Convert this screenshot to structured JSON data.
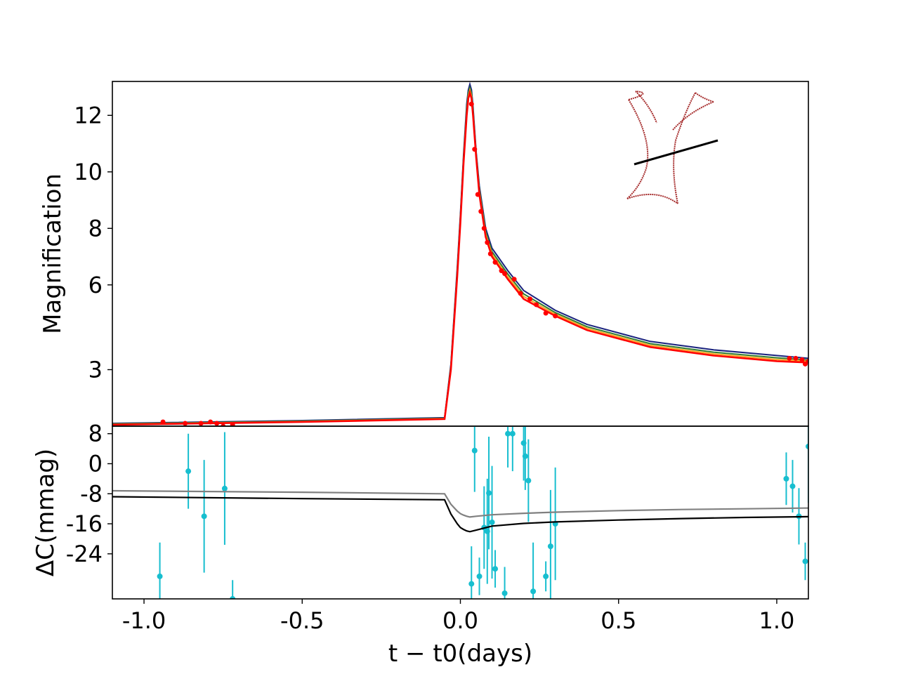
{
  "chart_data": [
    {
      "panel": "top",
      "type": "line",
      "ylabel": "Magnification",
      "xlim": [
        -1.1,
        1.1
      ],
      "ylim": [
        1.0,
        13.2
      ],
      "yticks": [
        3,
        6,
        8,
        10,
        12
      ],
      "ytick_labels": [
        "3",
        "6",
        "8",
        "10",
        "12"
      ],
      "grid": false,
      "colors": {
        "model_top": "#1a237e",
        "model_mid1": "#2e7d32",
        "model_mid2": "#f9a825",
        "model_best": "#ff0000",
        "data": "#ff0000",
        "caustic": "#a52a2a",
        "trajectory": "#000000"
      },
      "series": [
        {
          "color": "#1a237e",
          "x": [
            -1.1,
            -0.5,
            -0.05,
            -0.03,
            -0.01,
            0.0,
            0.01,
            0.02,
            0.025,
            0.03,
            0.035,
            0.04,
            0.05,
            0.06,
            0.08,
            0.1,
            0.15,
            0.2,
            0.3,
            0.4,
            0.6,
            0.8,
            1.0,
            1.1
          ],
          "y": [
            1.1,
            1.2,
            1.3,
            3.2,
            6.6,
            8.5,
            10.6,
            12.4,
            12.9,
            13.1,
            12.9,
            12.3,
            10.7,
            9.5,
            8.0,
            7.3,
            6.5,
            5.8,
            5.1,
            4.6,
            4.0,
            3.7,
            3.5,
            3.4
          ]
        },
        {
          "color": "#ff0000",
          "x": [
            -1.1,
            -0.5,
            -0.05,
            -0.03,
            -0.01,
            0.0,
            0.01,
            0.02,
            0.025,
            0.03,
            0.035,
            0.04,
            0.05,
            0.06,
            0.08,
            0.1,
            0.15,
            0.2,
            0.3,
            0.4,
            0.6,
            0.8,
            1.0,
            1.1
          ],
          "y": [
            1.05,
            1.15,
            1.25,
            3.0,
            6.3,
            8.2,
            10.3,
            12.0,
            12.6,
            12.8,
            12.6,
            12.0,
            10.5,
            9.2,
            7.7,
            7.0,
            6.2,
            5.5,
            4.9,
            4.4,
            3.8,
            3.5,
            3.3,
            3.25
          ]
        }
      ],
      "data_points": {
        "color": "#ff0000",
        "x": [
          -0.94,
          -0.87,
          -0.82,
          -0.79,
          -0.77,
          -0.75,
          -0.72,
          0.035,
          0.045,
          0.055,
          0.065,
          0.075,
          0.085,
          0.095,
          0.11,
          0.13,
          0.14,
          0.17,
          0.19,
          0.22,
          0.24,
          0.27,
          0.3,
          1.04,
          1.06,
          1.08,
          1.09,
          1.1
        ],
        "y": [
          1.15,
          1.1,
          1.1,
          1.15,
          1.1,
          1.0,
          1.05,
          12.4,
          10.8,
          9.2,
          8.6,
          8.0,
          7.5,
          7.1,
          6.8,
          6.5,
          6.4,
          6.2,
          5.7,
          5.5,
          5.3,
          5.0,
          4.9,
          3.4,
          3.4,
          3.35,
          3.2,
          3.3
        ]
      }
    },
    {
      "panel": "bottom",
      "type": "line",
      "xlabel": "t − t0(days)",
      "ylabel": "ΔC(mmag)",
      "xlim": [
        -1.1,
        1.1
      ],
      "ylim": [
        -36,
        10
      ],
      "xticks": [
        -1.0,
        -0.5,
        0.0,
        0.5,
        1.0
      ],
      "xtick_labels": [
        "-1.0",
        "-0.5",
        "0.0",
        "0.5",
        "1.0"
      ],
      "yticks": [
        8,
        0,
        -8,
        -16,
        -24
      ],
      "ytick_labels": [
        "8",
        "0",
        "-8",
        "-16",
        "-24"
      ],
      "grid": false,
      "colors": {
        "line_grey": "#808080",
        "line_black": "#000000",
        "data": "#17becf"
      },
      "series": [
        {
          "color": "#808080",
          "x": [
            -1.1,
            -0.5,
            -0.05,
            -0.03,
            -0.01,
            0.0,
            0.01,
            0.02,
            0.03,
            0.05,
            0.1,
            0.2,
            0.3,
            0.5,
            0.7,
            0.9,
            1.1
          ],
          "y": [
            -7.2,
            -7.6,
            -8.0,
            -10.8,
            -12.6,
            -13.3,
            -13.7,
            -14.0,
            -14.2,
            -14.0,
            -13.6,
            -13.2,
            -12.9,
            -12.5,
            -12.2,
            -12.0,
            -11.8
          ]
        },
        {
          "color": "#000000",
          "x": [
            -1.1,
            -0.5,
            -0.05,
            -0.03,
            -0.01,
            0.0,
            0.01,
            0.02,
            0.03,
            0.05,
            0.1,
            0.2,
            0.3,
            0.5,
            0.7,
            0.9,
            1.1
          ],
          "y": [
            -8.8,
            -9.3,
            -9.6,
            -13.4,
            -16.0,
            -17.0,
            -17.5,
            -17.9,
            -18.1,
            -17.7,
            -16.6,
            -15.9,
            -15.5,
            -15.0,
            -14.6,
            -14.3,
            -14.1
          ]
        }
      ],
      "error_bars": {
        "color": "#17becf",
        "points": [
          {
            "x": -0.95,
            "y": -30,
            "err": 18
          },
          {
            "x": -0.86,
            "y": -2,
            "err": 20
          },
          {
            "x": -0.81,
            "y": -14,
            "err": 30
          },
          {
            "x": -0.745,
            "y": -6.6,
            "err": 30
          },
          {
            "x": -0.72,
            "y": -36,
            "err": 10
          },
          {
            "x": 0.035,
            "y": -32,
            "err": 20
          },
          {
            "x": 0.045,
            "y": 3.5,
            "err": 22
          },
          {
            "x": 0.06,
            "y": -30,
            "err": 10
          },
          {
            "x": 0.075,
            "y": -17,
            "err": 22
          },
          {
            "x": 0.085,
            "y": -18,
            "err": 28
          },
          {
            "x": 0.09,
            "y": -7.8,
            "err": 30
          },
          {
            "x": 0.1,
            "y": -15.6,
            "err": 30
          },
          {
            "x": 0.11,
            "y": -28,
            "err": 10
          },
          {
            "x": 0.14,
            "y": -34.5,
            "err": 14
          },
          {
            "x": 0.15,
            "y": 8,
            "err": 18
          },
          {
            "x": 0.165,
            "y": 8,
            "err": 20
          },
          {
            "x": 0.2,
            "y": 5.5,
            "err": 20
          },
          {
            "x": 0.205,
            "y": 2,
            "err": 18
          },
          {
            "x": 0.215,
            "y": -4.5,
            "err": 22
          },
          {
            "x": 0.23,
            "y": -34,
            "err": 26
          },
          {
            "x": 0.27,
            "y": -30,
            "err": 8
          },
          {
            "x": 0.285,
            "y": -22,
            "err": 30
          },
          {
            "x": 0.3,
            "y": -16,
            "err": 30
          },
          {
            "x": 1.03,
            "y": -4,
            "err": 14
          },
          {
            "x": 1.05,
            "y": -6,
            "err": 14
          },
          {
            "x": 1.07,
            "y": -14,
            "err": 15
          },
          {
            "x": 1.09,
            "y": -26,
            "err": 10
          },
          {
            "x": 1.1,
            "y": 4.6,
            "err": 30
          }
        ]
      }
    }
  ]
}
